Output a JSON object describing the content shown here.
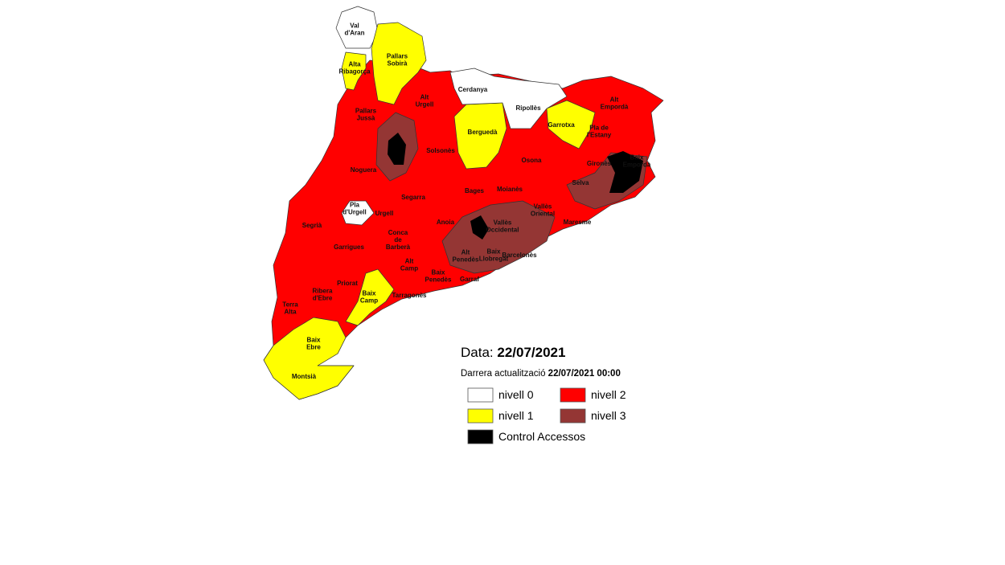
{
  "date_label": "Data:",
  "date": "22/07/2021",
  "update_label": "Darrera actualització",
  "update_value": "22/07/2021 00:00",
  "legend": [
    {
      "label": "nivell 0",
      "color": "#ffffff"
    },
    {
      "label": "nivell 2",
      "color": "#ff0000"
    },
    {
      "label": "nivell 1",
      "color": "#ffff00"
    },
    {
      "label": "nivell 3",
      "color": "#943634"
    },
    {
      "label": "Control Accessos",
      "color": "#000000"
    }
  ],
  "regions": [
    {
      "lines": [
        "Val",
        "d'Aran"
      ]
    },
    {
      "lines": [
        "Pallars",
        "Sobirà"
      ]
    },
    {
      "lines": [
        "Alta",
        "Ribagorça"
      ]
    },
    {
      "lines": [
        "Cerdanya"
      ]
    },
    {
      "lines": [
        "Ripollès"
      ]
    },
    {
      "lines": [
        "Alt",
        "Urgell"
      ]
    },
    {
      "lines": [
        "Alt",
        "Empordà"
      ]
    },
    {
      "lines": [
        "Pallars",
        "Jussà"
      ]
    },
    {
      "lines": [
        "Garrotxa"
      ]
    },
    {
      "lines": [
        "Pla de",
        "l'Estany"
      ]
    },
    {
      "lines": [
        "Berguedà"
      ]
    },
    {
      "lines": [
        "Solsonès"
      ]
    },
    {
      "lines": [
        "Baix",
        "Empordà"
      ]
    },
    {
      "lines": [
        "Gironès"
      ]
    },
    {
      "lines": [
        "Osona"
      ]
    },
    {
      "lines": [
        "Noguera"
      ]
    },
    {
      "lines": [
        "Selva"
      ]
    },
    {
      "lines": [
        "Moianès"
      ]
    },
    {
      "lines": [
        "Bages"
      ]
    },
    {
      "lines": [
        "Segarra"
      ]
    },
    {
      "lines": [
        "Pla",
        "d'Urgell"
      ]
    },
    {
      "lines": [
        "Urgell"
      ]
    },
    {
      "lines": [
        "Vallès",
        "Oriental"
      ]
    },
    {
      "lines": [
        "Anoia"
      ]
    },
    {
      "lines": [
        "Vallès",
        "Occidental"
      ]
    },
    {
      "lines": [
        "Maresme"
      ]
    },
    {
      "lines": [
        "Segrià"
      ]
    },
    {
      "lines": [
        "Garrigues"
      ]
    },
    {
      "lines": [
        "Conca",
        "de",
        "Barberà"
      ]
    },
    {
      "lines": [
        "Alt",
        "Penedès"
      ]
    },
    {
      "lines": [
        "Baix",
        "Llobregat"
      ]
    },
    {
      "lines": [
        "Barcelonès"
      ]
    },
    {
      "lines": [
        "Alt",
        "Camp"
      ]
    },
    {
      "lines": [
        "Baix",
        "Penedès"
      ]
    },
    {
      "lines": [
        "Garraf"
      ]
    },
    {
      "lines": [
        "Priorat"
      ]
    },
    {
      "lines": [
        "Ribera",
        "d'Ebre"
      ]
    },
    {
      "lines": [
        "Baix",
        "Camp"
      ]
    },
    {
      "lines": [
        "Tarragonès"
      ]
    },
    {
      "lines": [
        "Terra",
        "Alta"
      ]
    },
    {
      "lines": [
        "Baix",
        "Ebre"
      ]
    },
    {
      "lines": [
        "Montsià"
      ]
    }
  ]
}
